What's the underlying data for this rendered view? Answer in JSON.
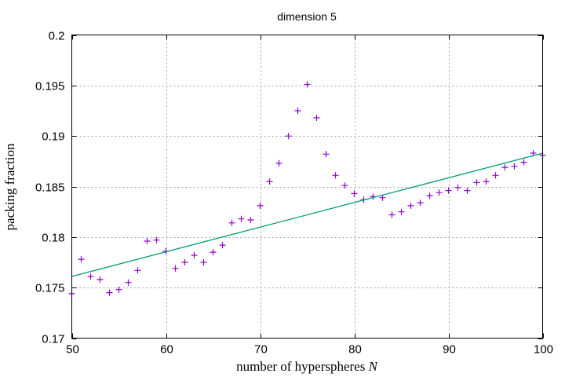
{
  "chart_data": {
    "type": "scatter",
    "title": "dimension 5",
    "xlabel": "number of hyperspheres",
    "xlabel_var": "N",
    "ylabel": "packing fraction",
    "xlim": [
      50,
      100
    ],
    "ylim": [
      0.17,
      0.2
    ],
    "xticks": [
      50,
      60,
      70,
      80,
      90,
      100
    ],
    "xtick_labels": [
      "50",
      "60",
      "70",
      "80",
      "90",
      "100"
    ],
    "yticks": [
      0.17,
      0.175,
      0.18,
      0.185,
      0.19,
      0.195,
      0.2
    ],
    "ytick_labels": [
      "0.17",
      "0.175",
      "0.18",
      "0.185",
      "0.19",
      "0.195",
      "0.2"
    ],
    "grid": true,
    "legend": "none",
    "series": [
      {
        "kind": "points",
        "marker": "plus",
        "color": "#9400d3",
        "x": [
          50,
          51,
          52,
          53,
          54,
          55,
          56,
          57,
          58,
          59,
          60,
          61,
          62,
          63,
          64,
          65,
          66,
          67,
          68,
          69,
          70,
          71,
          72,
          73,
          74,
          75,
          76,
          77,
          78,
          79,
          80,
          81,
          82,
          83,
          84,
          85,
          86,
          87,
          88,
          89,
          90,
          91,
          92,
          93,
          94,
          95,
          96,
          97,
          98,
          99,
          100
        ],
        "y": [
          0.1744,
          0.1778,
          0.1761,
          0.1758,
          0.1745,
          0.1748,
          0.1755,
          0.1767,
          0.1796,
          0.1797,
          0.1786,
          0.1769,
          0.1775,
          0.1782,
          0.1775,
          0.1785,
          0.1792,
          0.1814,
          0.1818,
          0.1817,
          0.1831,
          0.1855,
          0.1873,
          0.19,
          0.1925,
          0.1951,
          0.1918,
          0.1882,
          0.1861,
          0.1851,
          0.1843,
          0.1837,
          0.184,
          0.1839,
          0.1822,
          0.1825,
          0.1831,
          0.1834,
          0.1841,
          0.1844,
          0.1846,
          0.1849,
          0.1846,
          0.1854,
          0.1855,
          0.1861,
          0.1869,
          0.187,
          0.1874,
          0.1883,
          0.1881
        ]
      },
      {
        "kind": "line",
        "color": "#009e73",
        "x": [
          50,
          100
        ],
        "y": [
          0.1761,
          0.1883
        ]
      }
    ]
  }
}
